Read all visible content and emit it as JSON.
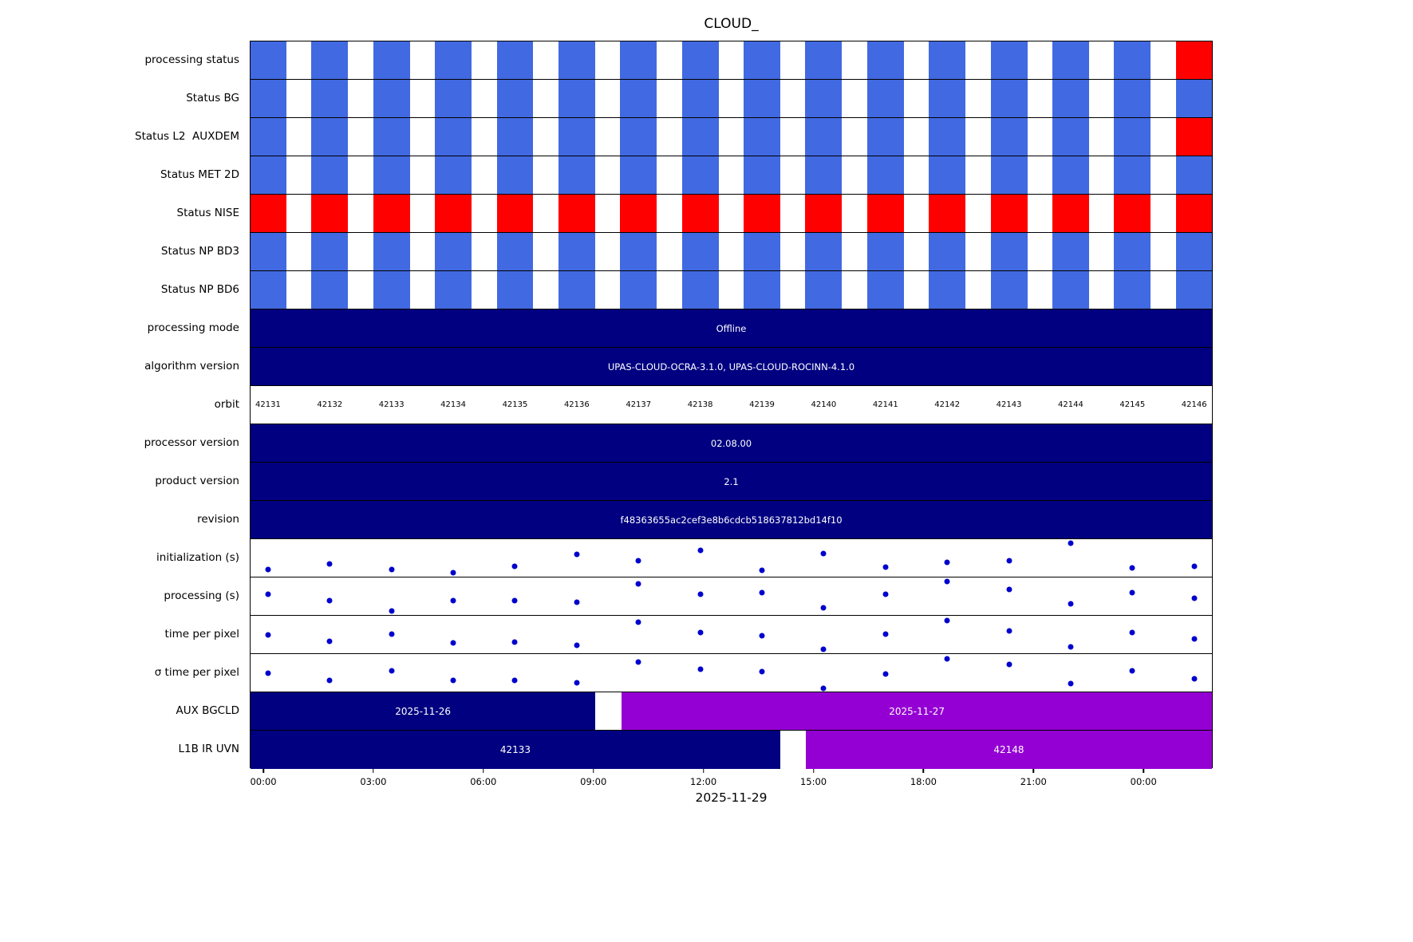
{
  "title": "CLOUD_",
  "xlabel": "2025-11-29",
  "colors": {
    "ok": "#4169E1",
    "error": "#FF0000",
    "navy": "#000080",
    "purple": "#9400D3",
    "dot": "#0000CD",
    "white": "#FFFFFF"
  },
  "chart_data": {
    "type": "table",
    "title": "CLOUD_",
    "xlabel": "2025-11-29",
    "legend": "none",
    "x_tick_labels": [
      "00:00",
      "03:00",
      "06:00",
      "09:00",
      "12:00",
      "15:00",
      "18:00",
      "21:00",
      "00:00"
    ],
    "orbits": [
      "42131",
      "42132",
      "42133",
      "42134",
      "42135",
      "42136",
      "42137",
      "42138",
      "42139",
      "42140",
      "42141",
      "42142",
      "42143",
      "42144",
      "42145",
      "42146"
    ],
    "rows": [
      {
        "label": "processing status",
        "kind": "status",
        "values": [
          "ok",
          "ok",
          "ok",
          "ok",
          "ok",
          "ok",
          "ok",
          "ok",
          "ok",
          "ok",
          "ok",
          "ok",
          "ok",
          "ok",
          "ok",
          "error"
        ]
      },
      {
        "label": "Status BG",
        "kind": "status",
        "values": [
          "ok",
          "ok",
          "ok",
          "ok",
          "ok",
          "ok",
          "ok",
          "ok",
          "ok",
          "ok",
          "ok",
          "ok",
          "ok",
          "ok",
          "ok",
          "ok"
        ]
      },
      {
        "label": "Status L2  AUXDEM",
        "kind": "status",
        "values": [
          "ok",
          "ok",
          "ok",
          "ok",
          "ok",
          "ok",
          "ok",
          "ok",
          "ok",
          "ok",
          "ok",
          "ok",
          "ok",
          "ok",
          "ok",
          "error"
        ]
      },
      {
        "label": "Status MET 2D",
        "kind": "status",
        "values": [
          "ok",
          "ok",
          "ok",
          "ok",
          "ok",
          "ok",
          "ok",
          "ok",
          "ok",
          "ok",
          "ok",
          "ok",
          "ok",
          "ok",
          "ok",
          "ok"
        ]
      },
      {
        "label": "Status NISE",
        "kind": "status",
        "values": [
          "error",
          "error",
          "error",
          "error",
          "error",
          "error",
          "error",
          "error",
          "error",
          "error",
          "error",
          "error",
          "error",
          "error",
          "error",
          "error"
        ]
      },
      {
        "label": "Status NP BD3",
        "kind": "status",
        "values": [
          "ok",
          "ok",
          "ok",
          "ok",
          "ok",
          "ok",
          "ok",
          "ok",
          "ok",
          "ok",
          "ok",
          "ok",
          "ok",
          "ok",
          "ok",
          "ok"
        ]
      },
      {
        "label": "Status NP BD6",
        "kind": "status",
        "values": [
          "ok",
          "ok",
          "ok",
          "ok",
          "ok",
          "ok",
          "ok",
          "ok",
          "ok",
          "ok",
          "ok",
          "ok",
          "ok",
          "ok",
          "ok",
          "ok"
        ]
      },
      {
        "label": "processing mode",
        "kind": "text",
        "value": "Offline"
      },
      {
        "label": "algorithm version",
        "kind": "text",
        "value": "UPAS-CLOUD-OCRA-3.1.0, UPAS-CLOUD-ROCINN-4.1.0"
      },
      {
        "label": "orbit",
        "kind": "orbit"
      },
      {
        "label": "processor version",
        "kind": "text",
        "value": "02.08.00"
      },
      {
        "label": "product version",
        "kind": "text",
        "value": "2.1"
      },
      {
        "label": "revision",
        "kind": "text",
        "value": "f48363655ac2cef3e8b6cdcb518637812bd14f10"
      },
      {
        "label": "initialization (s)",
        "kind": "scatter",
        "values": [
          0.17,
          0.33,
          0.17,
          0.08,
          0.27,
          0.63,
          0.44,
          0.73,
          0.15,
          0.65,
          0.23,
          0.38,
          0.42,
          0.96,
          0.21,
          0.27
        ]
      },
      {
        "label": "processing (s)",
        "kind": "scatter",
        "values": [
          0.57,
          0.38,
          0.08,
          0.38,
          0.38,
          0.33,
          0.88,
          0.57,
          0.62,
          0.17,
          0.57,
          0.95,
          0.71,
          0.29,
          0.62,
          0.45
        ]
      },
      {
        "label": "time per pixel",
        "kind": "scatter",
        "values": [
          0.5,
          0.31,
          0.52,
          0.27,
          0.29,
          0.19,
          0.88,
          0.58,
          0.48,
          0.06,
          0.52,
          0.94,
          0.63,
          0.15,
          0.56,
          0.38
        ]
      },
      {
        "label": "σ time per pixel",
        "kind": "scatter",
        "values": [
          0.5,
          0.29,
          0.58,
          0.29,
          0.29,
          0.21,
          0.83,
          0.63,
          0.54,
          0.04,
          0.48,
          0.94,
          0.77,
          0.19,
          0.58,
          0.33
        ]
      },
      {
        "label": "AUX BGCLD",
        "kind": "segments",
        "segments": [
          {
            "text": "2025-11-26",
            "color": "navy",
            "start": 0,
            "end": 0.3587
          },
          {
            "text": "",
            "color": "white",
            "start": 0.3587,
            "end": 0.3861
          },
          {
            "text": "2025-11-27",
            "color": "purple",
            "start": 0.3861,
            "end": 1
          }
        ]
      },
      {
        "label": "L1B IR UVN",
        "kind": "segments",
        "segments": [
          {
            "text": "42133",
            "color": "navy",
            "start": 0,
            "end": 0.551
          },
          {
            "text": "",
            "color": "white",
            "start": 0.551,
            "end": 0.5775
          },
          {
            "text": "42148",
            "color": "purple",
            "start": 0.5775,
            "end": 1
          }
        ]
      }
    ]
  }
}
